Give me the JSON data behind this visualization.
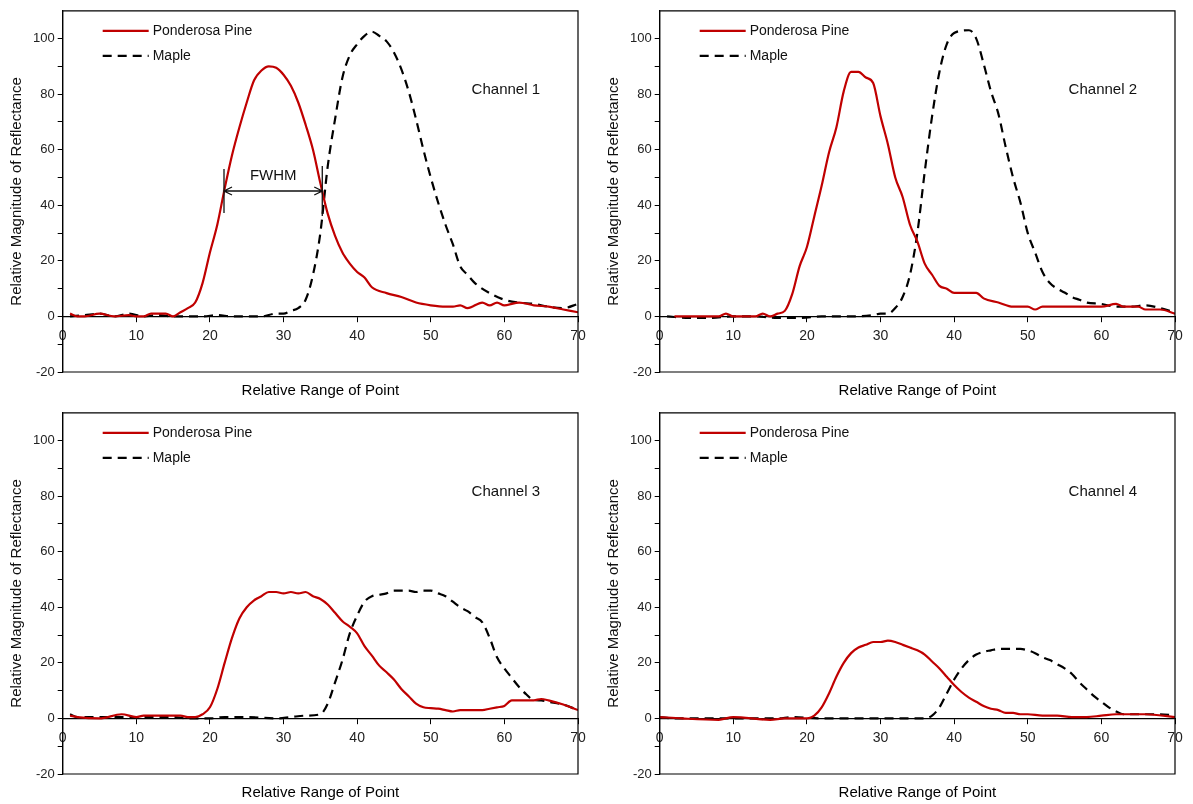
{
  "chart_data": [
    {
      "type": "line",
      "xlabel": "Relative Range of Point",
      "ylabel": "Relative Magnitude of Reflectance",
      "xlim": [
        0,
        70
      ],
      "xticks": [
        0,
        10,
        20,
        30,
        40,
        50,
        60,
        70
      ],
      "ylim": [
        -20,
        110
      ],
      "yticks": [
        -20,
        {
          "value": -10,
          "label": null
        },
        0,
        {
          "value": 10,
          "label": null
        },
        20,
        {
          "value": 30,
          "label": null
        },
        40,
        {
          "value": 50,
          "label": null
        },
        60,
        {
          "value": 70,
          "label": null
        },
        80,
        {
          "value": 90,
          "label": null
        },
        100
      ],
      "legend": "top left",
      "marker": "none",
      "annotations": [
        "Channel 1",
        "FWHM"
      ],
      "series": [
        {
          "name": "Ponderosa Pine",
          "color": "#c00000",
          "line_style": "solid",
          "x": [
            1,
            2,
            3,
            5,
            7,
            9,
            10,
            11,
            12,
            14,
            15,
            16,
            17,
            18,
            19,
            20,
            21,
            22,
            23,
            24,
            25,
            26,
            27,
            28,
            29,
            30,
            31,
            32,
            33,
            34,
            35,
            36,
            37,
            38,
            39,
            40,
            41,
            42,
            44,
            46,
            48,
            50,
            52,
            53,
            54,
            55,
            57,
            58,
            59,
            60,
            62,
            64,
            66,
            68,
            70
          ],
          "values": [
            1,
            0,
            0,
            1,
            0,
            0.5,
            0,
            0,
            1,
            1,
            0,
            1.5,
            3,
            5,
            12,
            23,
            33,
            46,
            58,
            68,
            77,
            85,
            88.5,
            90,
            89.5,
            87,
            83,
            77,
            69,
            60,
            48,
            37,
            29,
            23,
            19,
            16,
            14,
            10.5,
            8.4,
            7,
            5,
            4,
            3.5,
            3.5,
            4,
            3,
            5,
            4,
            5,
            4,
            5,
            4,
            3.5,
            2.5,
            1.5
          ]
        },
        {
          "name": "Maple",
          "color": "#000000",
          "line_style": "dashed",
          "x": [
            1,
            3,
            5,
            7,
            9,
            11,
            13,
            15,
            17,
            19,
            21,
            23,
            25,
            27,
            29,
            30,
            31,
            32,
            33,
            34,
            35,
            36,
            37,
            38,
            39,
            40,
            41,
            42,
            43,
            44,
            45,
            46,
            47,
            48,
            49,
            50,
            51,
            52,
            53,
            54,
            55,
            56,
            58,
            60,
            62,
            64,
            66,
            68,
            70
          ],
          "values": [
            0,
            0.5,
            1,
            0,
            1,
            0,
            0.5,
            0,
            0,
            0,
            0.5,
            0,
            0,
            0,
            1,
            1,
            2,
            3,
            6,
            15,
            30,
            54,
            71,
            86,
            94,
            98,
            101,
            102.5,
            101,
            99,
            95,
            89,
            81,
            71,
            60,
            50,
            41,
            33,
            26,
            18,
            15,
            12,
            8.4,
            6,
            5,
            4.5,
            3.5,
            3,
            4.5
          ]
        }
      ]
    },
    {
      "type": "line",
      "xlabel": "Relative Range of Point",
      "ylabel": "Relative Magnitude of Reflectance",
      "xlim": [
        0,
        70
      ],
      "xticks": [
        0,
        10,
        20,
        30,
        40,
        50,
        60,
        70
      ],
      "ylim": [
        -20,
        110
      ],
      "yticks": [
        -20,
        {
          "value": -10,
          "label": null
        },
        0,
        {
          "value": 10,
          "label": null
        },
        20,
        {
          "value": 30,
          "label": null
        },
        40,
        {
          "value": 50,
          "label": null
        },
        60,
        {
          "value": 70,
          "label": null
        },
        80,
        {
          "value": 90,
          "label": null
        },
        100
      ],
      "legend": "top left",
      "marker": "none",
      "annotations": [
        "Channel 2"
      ],
      "series": [
        {
          "name": "Ponderosa Pine",
          "color": "#c00000",
          "line_style": "solid",
          "x": [
            2,
            5,
            8,
            9,
            10,
            13,
            14,
            15,
            16,
            17,
            18,
            19,
            20,
            21,
            22,
            23,
            24,
            25,
            26,
            27,
            28,
            29,
            30,
            31,
            32,
            33,
            34,
            35,
            36,
            37,
            38,
            39,
            40,
            42,
            43,
            44,
            46,
            48,
            50,
            51,
            52,
            55,
            60,
            62,
            63,
            65,
            66,
            68,
            70
          ],
          "values": [
            0,
            0,
            0,
            1,
            0,
            0,
            1,
            0,
            1,
            2,
            8,
            18,
            25,
            36,
            47,
            59,
            68,
            81,
            88,
            88,
            86,
            84,
            72,
            62,
            50,
            43,
            33,
            27,
            19,
            15,
            11,
            10,
            8.5,
            8.5,
            8.5,
            6.5,
            5,
            3.5,
            3.5,
            2.5,
            3.5,
            3.5,
            3.5,
            4.5,
            3.5,
            3.5,
            2.5,
            2.5,
            1
          ]
        },
        {
          "name": "Maple",
          "color": "#000000",
          "line_style": "dashed",
          "x": [
            1,
            4,
            7,
            10,
            13,
            16,
            19,
            22,
            26,
            29,
            30,
            31,
            32,
            33,
            34,
            35,
            36,
            37,
            38,
            39,
            40,
            42,
            43,
            44,
            45,
            46,
            47,
            48,
            49,
            50,
            51,
            52,
            53,
            54,
            55,
            56,
            57,
            58,
            60,
            62,
            64,
            66,
            68,
            70
          ],
          "values": [
            0,
            -0.5,
            -0.5,
            0,
            0,
            -0.5,
            -0.5,
            0,
            0,
            0.5,
            1,
            1,
            3,
            7,
            15,
            30,
            52,
            72,
            88,
            98,
            102,
            103,
            100,
            91,
            81,
            73,
            61,
            50,
            41,
            30,
            23,
            16,
            12,
            10,
            8.6,
            7,
            6,
            5,
            4.5,
            3.5,
            3.5,
            4,
            3,
            1.5
          ]
        }
      ]
    },
    {
      "type": "line",
      "xlabel": "Relative Range of Point",
      "ylabel": "Relative Magnitude of Reflectance",
      "xlim": [
        0,
        70
      ],
      "xticks": [
        0,
        10,
        20,
        30,
        40,
        50,
        60,
        70
      ],
      "ylim": [
        -20,
        110
      ],
      "yticks": [
        -20,
        {
          "value": -10,
          "label": null
        },
        0,
        {
          "value": 10,
          "label": null
        },
        20,
        {
          "value": 30,
          "label": null
        },
        40,
        {
          "value": 50,
          "label": null
        },
        60,
        {
          "value": 70,
          "label": null
        },
        80,
        {
          "value": 90,
          "label": null
        },
        100
      ],
      "legend": "top left",
      "marker": "none",
      "annotations": [
        "Channel 3"
      ],
      "series": [
        {
          "name": "Ponderosa Pine",
          "color": "#c00000",
          "line_style": "solid",
          "x": [
            1,
            2,
            5,
            8,
            10,
            11,
            13,
            16,
            17,
            18,
            19,
            20,
            21,
            22,
            23,
            24,
            25,
            26,
            27,
            28,
            29,
            30,
            31,
            32,
            33,
            34,
            35,
            36,
            37,
            38,
            39,
            40,
            41,
            42,
            43,
            44,
            45,
            46,
            47,
            48,
            49,
            50,
            51,
            52,
            53,
            54,
            56,
            57,
            58,
            59,
            60,
            61,
            62,
            64,
            65,
            66,
            68,
            70
          ],
          "values": [
            1,
            0.5,
            0,
            1.5,
            0.5,
            1,
            1,
            1,
            0.5,
            0.5,
            1.5,
            4,
            10.6,
            20,
            29,
            36,
            40,
            42.5,
            44,
            45.5,
            45.5,
            45,
            45.5,
            45,
            45.5,
            44,
            43,
            41,
            38,
            35,
            33,
            30.6,
            26,
            22.6,
            19,
            16.6,
            14,
            10.6,
            8,
            5.3,
            4,
            3.7,
            3.5,
            3,
            2.5,
            3,
            3,
            3,
            3.5,
            4,
            4.5,
            6.5,
            6.5,
            6.5,
            7,
            6.5,
            5,
            3
          ]
        },
        {
          "name": "Maple",
          "color": "#000000",
          "line_style": "dashed",
          "x": [
            1,
            2,
            5,
            10,
            15,
            17,
            20,
            22,
            25,
            29,
            31,
            33,
            35,
            36,
            37,
            38,
            39,
            40,
            41,
            42,
            43,
            44,
            45,
            46,
            47,
            48,
            49,
            50,
            51,
            52,
            53,
            54,
            55,
            56,
            57,
            58,
            59,
            60,
            61,
            62,
            63,
            64,
            65,
            66,
            68,
            70
          ],
          "values": [
            1.5,
            0.5,
            0.5,
            0.5,
            0.5,
            0,
            0,
            0.5,
            0.5,
            0,
            0.5,
            1,
            1.5,
            5.3,
            13,
            21,
            30.6,
            37,
            42,
            44,
            44.5,
            45,
            46,
            46,
            46,
            45.5,
            46,
            46,
            45,
            44,
            42,
            40,
            38.6,
            36.5,
            34.6,
            29,
            22,
            18,
            14.6,
            11.3,
            8.6,
            6.6,
            6.5,
            6,
            5,
            3
          ]
        }
      ]
    },
    {
      "type": "line",
      "xlabel": "Relative Range of Point",
      "ylabel": "Relative Magnitude of Reflectance",
      "xlim": [
        0,
        70
      ],
      "xticks": [
        0,
        10,
        20,
        30,
        40,
        50,
        60,
        70
      ],
      "ylim": [
        -20,
        110
      ],
      "yticks": [
        -20,
        {
          "value": -10,
          "label": null
        },
        0,
        {
          "value": 10,
          "label": null
        },
        20,
        {
          "value": 30,
          "label": null
        },
        40,
        {
          "value": 50,
          "label": null
        },
        60,
        {
          "value": 70,
          "label": null
        },
        80,
        {
          "value": 90,
          "label": null
        },
        100
      ],
      "legend": "top left",
      "marker": "none",
      "annotations": [
        "Channel 4"
      ],
      "series": [
        {
          "name": "Ponderosa Pine",
          "color": "#c00000",
          "line_style": "solid",
          "x": [
            0,
            3,
            8,
            10,
            15,
            17,
            20,
            21,
            22,
            23,
            24,
            25,
            26,
            27,
            28,
            29,
            30,
            31,
            32,
            33,
            34,
            35,
            36,
            37,
            38,
            39,
            40,
            41,
            42,
            43,
            44,
            45,
            46,
            47,
            48,
            49,
            50,
            52,
            54,
            56,
            58,
            60,
            62,
            66,
            70
          ],
          "values": [
            0.5,
            0,
            -0.5,
            0.5,
            -0.5,
            0,
            0,
            1,
            4,
            9,
            15,
            20,
            23.5,
            25.5,
            26.5,
            27.5,
            27.5,
            28,
            27.5,
            26.5,
            25.5,
            24.5,
            23,
            20.5,
            18,
            15,
            12,
            9.5,
            7.5,
            6,
            4.5,
            3.5,
            3,
            2,
            2,
            1.5,
            1.5,
            1,
            1,
            0.5,
            0.5,
            1,
            1.5,
            1.5,
            0.5
          ]
        },
        {
          "name": "Maple",
          "color": "#000000",
          "line_style": "dashed",
          "x": [
            0,
            2,
            10,
            16,
            18,
            22,
            30,
            36,
            37,
            38,
            39,
            40,
            41,
            42,
            43,
            44,
            45,
            46,
            47,
            48,
            49,
            50,
            51,
            52,
            53,
            54,
            55,
            56,
            57,
            58,
            59,
            60,
            61,
            62,
            63,
            65,
            68,
            70
          ],
          "values": [
            0.5,
            0,
            0,
            0,
            0.5,
            0,
            0,
            0,
            1,
            4,
            9,
            14,
            18,
            21,
            23,
            24,
            24.5,
            25,
            25,
            25,
            25,
            24.5,
            23.5,
            22,
            21,
            19.5,
            18,
            16,
            13,
            10.5,
            8,
            6,
            4,
            2.5,
            1.5,
            1.5,
            1.5,
            1
          ]
        }
      ]
    }
  ]
}
